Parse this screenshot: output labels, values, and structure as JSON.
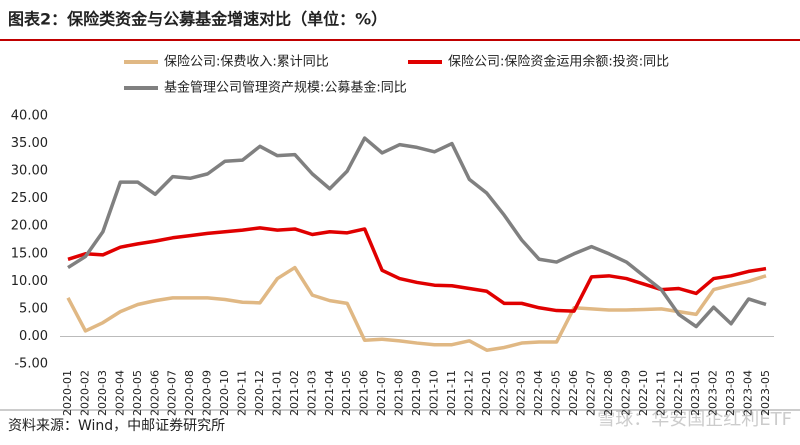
{
  "chart_data": {
    "type": "line",
    "title": "图表2：保险类资金与公募基金增速对比（单位：%）",
    "source": "资料来源：Wind，中邮证券研究所",
    "watermark": "雪球：华安国企红利ETF",
    "categories": [
      "2020-01",
      "2020-02",
      "2020-03",
      "2020-04",
      "2020-05",
      "2020-06",
      "2020-07",
      "2020-08",
      "2020-09",
      "2020-10",
      "2020-11",
      "2020-12",
      "2021-01",
      "2021-02",
      "2021-03",
      "2021-04",
      "2021-05",
      "2021-06",
      "2021-07",
      "2021-08",
      "2021-09",
      "2021-10",
      "2021-11",
      "2021-12",
      "2022-01",
      "2022-02",
      "2022-03",
      "2022-04",
      "2022-05",
      "2022-06",
      "2022-07",
      "2022-08",
      "2022-09",
      "2022-10",
      "2022-11",
      "2022-12",
      "2023-01",
      "2023-02",
      "2023-03",
      "2023-04",
      "2023-05"
    ],
    "series": [
      {
        "name": "保险公司:保费收入:累计同比",
        "color": "#e0b884",
        "values": [
          7,
          1,
          2.5,
          4.5,
          5.8,
          6.5,
          7,
          7,
          7,
          6.7,
          6.2,
          6.1,
          10.5,
          12.5,
          7.5,
          6.5,
          6,
          -0.7,
          -0.5,
          -0.8,
          -1.2,
          -1.5,
          -1.5,
          -0.8,
          -2.5,
          -2,
          -1.2,
          -1,
          -1,
          5.2,
          5,
          4.8,
          4.8,
          4.9,
          5,
          4.5,
          4,
          8.5,
          9.3,
          10,
          11
        ]
      },
      {
        "name": "保险公司:保险资金运用余额:投资:同比",
        "color": "#e00000",
        "values": [
          14,
          15,
          14.8,
          16.2,
          16.8,
          17.3,
          17.9,
          18.3,
          18.7,
          19,
          19.3,
          19.7,
          19.3,
          19.5,
          18.5,
          19,
          18.8,
          19.5,
          12,
          10.5,
          9.8,
          9.3,
          9.2,
          8.7,
          8.2,
          6,
          6,
          5.2,
          4.7,
          4.6,
          10.8,
          11,
          10.5,
          9.5,
          8.5,
          8.7,
          7.8,
          10.5,
          11,
          11.8,
          12.3
        ]
      },
      {
        "name": "基金管理公司管理资产规模:公募基金:同比",
        "color": "#808080",
        "values": [
          12.5,
          14.5,
          19,
          28,
          28,
          25.8,
          29,
          28.7,
          29.5,
          31.8,
          32,
          34.5,
          32.8,
          33,
          29.5,
          26.8,
          30,
          36,
          33.3,
          34.8,
          34.3,
          33.5,
          35,
          28.5,
          26,
          22,
          17.5,
          14,
          13.5,
          15,
          16.3,
          15,
          13.5,
          11,
          8.5,
          4,
          1.8,
          5.3,
          2.3,
          6.8,
          5.8
        ]
      }
    ],
    "ylim": [
      -5,
      40
    ],
    "yticks": [
      {
        "value": -5,
        "label": "-5.00"
      },
      {
        "value": 0,
        "label": "0.00"
      },
      {
        "value": 5,
        "label": "5.00"
      },
      {
        "value": 10,
        "label": "10.00"
      },
      {
        "value": 15,
        "label": "15.00"
      },
      {
        "value": 20,
        "label": "20.00"
      },
      {
        "value": 25,
        "label": "25.00"
      },
      {
        "value": 30,
        "label": "30.00"
      },
      {
        "value": 35,
        "label": "35.00"
      },
      {
        "value": 40,
        "label": "40.00"
      }
    ]
  }
}
